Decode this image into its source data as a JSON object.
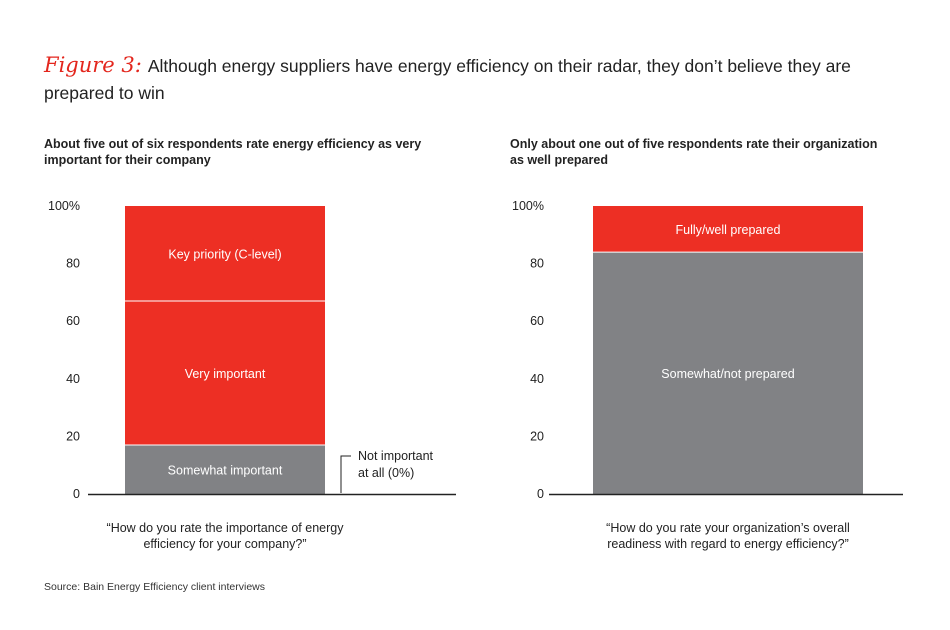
{
  "figure": {
    "label": "Figure 3:",
    "title": "Although energy suppliers have energy efficiency on their radar, they don’t believe they are prepared to win"
  },
  "colors": {
    "red": "#ed2f24",
    "gray": "#818285",
    "axis": "#222222"
  },
  "source": "Source: Bain Energy Efficiency client interviews",
  "chart_data": [
    {
      "type": "bar",
      "stacked": true,
      "title": "About five out of six respondents rate energy efficiency as very important for their company",
      "xlabel": "“How do you rate the importance of energy efficiency for your company?”",
      "ylim": [
        0,
        100
      ],
      "yticks": [
        "0",
        "20",
        "40",
        "60",
        "80",
        "100%"
      ],
      "segments": [
        {
          "name": "Somewhat important",
          "value": 17,
          "color": "#818285"
        },
        {
          "name": "Very important",
          "value": 50,
          "color": "#ed2f24"
        },
        {
          "name": "Key priority (C-level)",
          "value": 33,
          "color": "#ed2f24"
        }
      ],
      "annotation": "Not important at all (0%)"
    },
    {
      "type": "bar",
      "stacked": true,
      "title": "Only about one out of five respondents rate their organization as well prepared",
      "xlabel": "“How do you rate your organization’s overall readiness with regard to energy efficiency?”",
      "ylim": [
        0,
        100
      ],
      "yticks": [
        "0",
        "20",
        "40",
        "60",
        "80",
        "100%"
      ],
      "segments": [
        {
          "name": "Somewhat/not prepared",
          "value": 84,
          "color": "#818285"
        },
        {
          "name": "Fully/well prepared",
          "value": 16,
          "color": "#ed2f24"
        }
      ]
    }
  ]
}
